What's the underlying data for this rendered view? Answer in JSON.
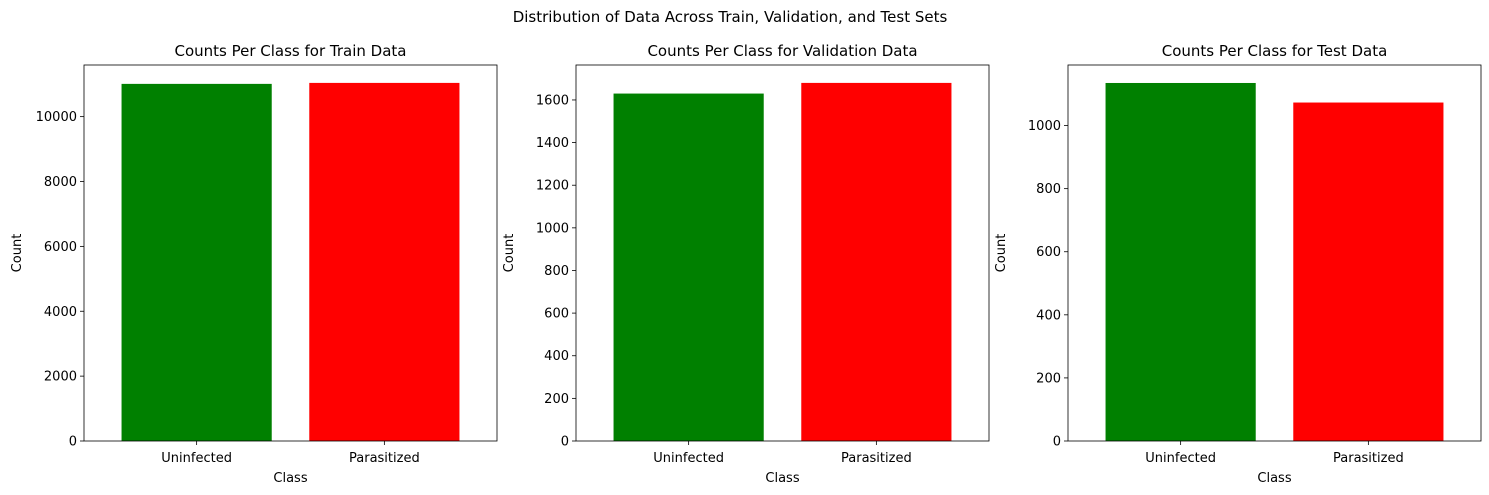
{
  "figure": {
    "title": "Distribution of Data Across Train, Validation, and Test Sets"
  },
  "chart_data": [
    {
      "type": "bar",
      "title": "Counts Per Class for Train Data",
      "xlabel": "Class",
      "ylabel": "Count",
      "categories": [
        "Uninfected",
        "Parasitized"
      ],
      "values": [
        11010,
        11040
      ],
      "colors": [
        "#008000",
        "#ff0000"
      ],
      "ylim": [
        0,
        11592
      ],
      "yticks": [
        0,
        2000,
        4000,
        6000,
        8000,
        10000
      ],
      "grid": false,
      "legend": "none"
    },
    {
      "type": "bar",
      "title": "Counts Per Class for Validation Data",
      "xlabel": "Class",
      "ylabel": "Count",
      "categories": [
        "Uninfected",
        "Parasitized"
      ],
      "values": [
        1630,
        1680
      ],
      "colors": [
        "#008000",
        "#ff0000"
      ],
      "ylim": [
        0,
        1764
      ],
      "yticks": [
        0,
        200,
        400,
        600,
        800,
        1000,
        1200,
        1400,
        1600
      ],
      "grid": false,
      "legend": "none"
    },
    {
      "type": "bar",
      "title": "Counts Per Class for Test Data",
      "xlabel": "Class",
      "ylabel": "Count",
      "categories": [
        "Uninfected",
        "Parasitized"
      ],
      "values": [
        1135,
        1073
      ],
      "colors": [
        "#008000",
        "#ff0000"
      ],
      "ylim": [
        0,
        1192
      ],
      "yticks": [
        0,
        200,
        400,
        600,
        800,
        1000
      ],
      "grid": false,
      "legend": "none"
    }
  ]
}
